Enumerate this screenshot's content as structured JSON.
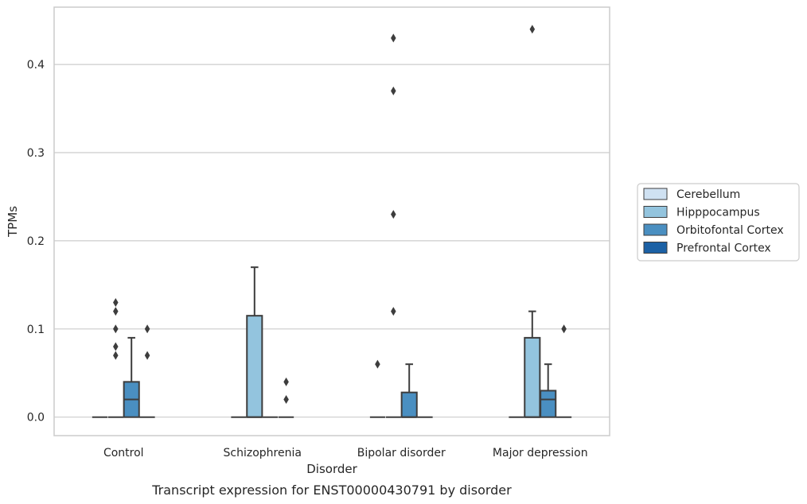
{
  "chart_data": {
    "type": "box",
    "caption": "Transcript expression for ENST00000430791 by disorder",
    "xlabel": "Disorder",
    "ylabel": "TPMs",
    "ylim": [
      -0.021,
      0.465
    ],
    "yticks": [
      "0.0",
      "0.1",
      "0.2",
      "0.3",
      "0.4"
    ],
    "ytick_values": [
      0.0,
      0.1,
      0.2,
      0.3,
      0.4
    ],
    "grid": "horizontal",
    "legend_position": "right",
    "categories": [
      "Control",
      "Schizophrenia",
      "Bipolar disorder",
      "Major depression"
    ],
    "series": [
      {
        "name": "Cerebellum",
        "color": "#cfe1f2",
        "boxes": [
          {
            "q1": 0,
            "median": 0,
            "q3": 0,
            "whislo": 0,
            "whishi": 0,
            "fliers": []
          },
          {
            "q1": 0,
            "median": 0,
            "q3": 0,
            "whislo": 0,
            "whishi": 0,
            "fliers": []
          },
          {
            "q1": 0,
            "median": 0,
            "q3": 0,
            "whislo": 0,
            "whishi": 0,
            "fliers": [
              0.06
            ]
          },
          {
            "q1": 0,
            "median": 0,
            "q3": 0,
            "whislo": 0,
            "whishi": 0,
            "fliers": []
          }
        ]
      },
      {
        "name": "Hipppocampus",
        "color": "#93c4de",
        "boxes": [
          {
            "q1": 0,
            "median": 0,
            "q3": 0,
            "whislo": 0,
            "whishi": 0,
            "fliers": [
              0.07,
              0.08,
              0.1,
              0.12,
              0.13
            ]
          },
          {
            "q1": 0,
            "median": 0,
            "q3": 0.115,
            "whislo": 0,
            "whishi": 0.17,
            "fliers": []
          },
          {
            "q1": 0,
            "median": 0,
            "q3": 0,
            "whislo": 0,
            "whishi": 0,
            "fliers": [
              0.12,
              0.23,
              0.37,
              0.43
            ]
          },
          {
            "q1": 0,
            "median": 0,
            "q3": 0.09,
            "whislo": 0,
            "whishi": 0.12,
            "fliers": [
              0.44
            ]
          }
        ]
      },
      {
        "name": "Orbitofontal Cortex",
        "color": "#4a8fc1",
        "boxes": [
          {
            "q1": 0,
            "median": 0.02,
            "q3": 0.04,
            "whislo": 0,
            "whishi": 0.09,
            "fliers": []
          },
          {
            "q1": 0,
            "median": 0,
            "q3": 0,
            "whislo": 0,
            "whishi": 0,
            "fliers": []
          },
          {
            "q1": 0,
            "median": 0,
            "q3": 0.028,
            "whislo": 0,
            "whishi": 0.06,
            "fliers": []
          },
          {
            "q1": 0,
            "median": 0.02,
            "q3": 0.03,
            "whislo": 0,
            "whishi": 0.06,
            "fliers": []
          }
        ]
      },
      {
        "name": "Prefrontal Cortex",
        "color": "#1c61a5",
        "boxes": [
          {
            "q1": 0,
            "median": 0,
            "q3": 0,
            "whislo": 0,
            "whishi": 0,
            "fliers": [
              0.07,
              0.1
            ]
          },
          {
            "q1": 0,
            "median": 0,
            "q3": 0,
            "whislo": 0,
            "whishi": 0,
            "fliers": [
              0.02,
              0.04
            ]
          },
          {
            "q1": 0,
            "median": 0,
            "q3": 0,
            "whislo": 0,
            "whishi": 0,
            "fliers": []
          },
          {
            "q1": 0,
            "median": 0,
            "q3": 0,
            "whislo": 0,
            "whishi": 0,
            "fliers": [
              0.1
            ]
          }
        ]
      }
    ]
  }
}
